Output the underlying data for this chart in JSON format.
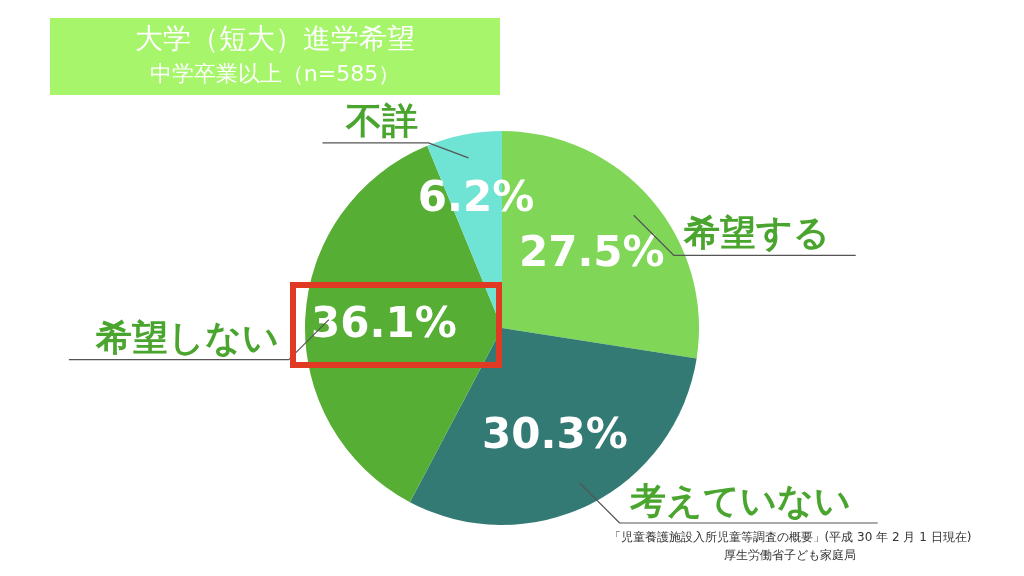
{
  "chart_data": {
    "type": "pie",
    "title": "大学（短大）進学希望",
    "subtitle": "中学卒業以上（n=585）",
    "categories": [
      "希望する",
      "考えていない",
      "希望しない",
      "不詳"
    ],
    "values": [
      27.5,
      30.3,
      36.1,
      6.2
    ],
    "colors": [
      "#7fd657",
      "#347a74",
      "#56ae34",
      "#6fe3d4"
    ],
    "value_labels": [
      "27.5%",
      "30.3%",
      "36.1%",
      "6.2%"
    ],
    "annotations": [
      "「児童養護施設入所児童等調査の概要」(平成 30 年 2 月 1 日現在)",
      "厚生労働省子ども家庭局"
    ]
  }
}
